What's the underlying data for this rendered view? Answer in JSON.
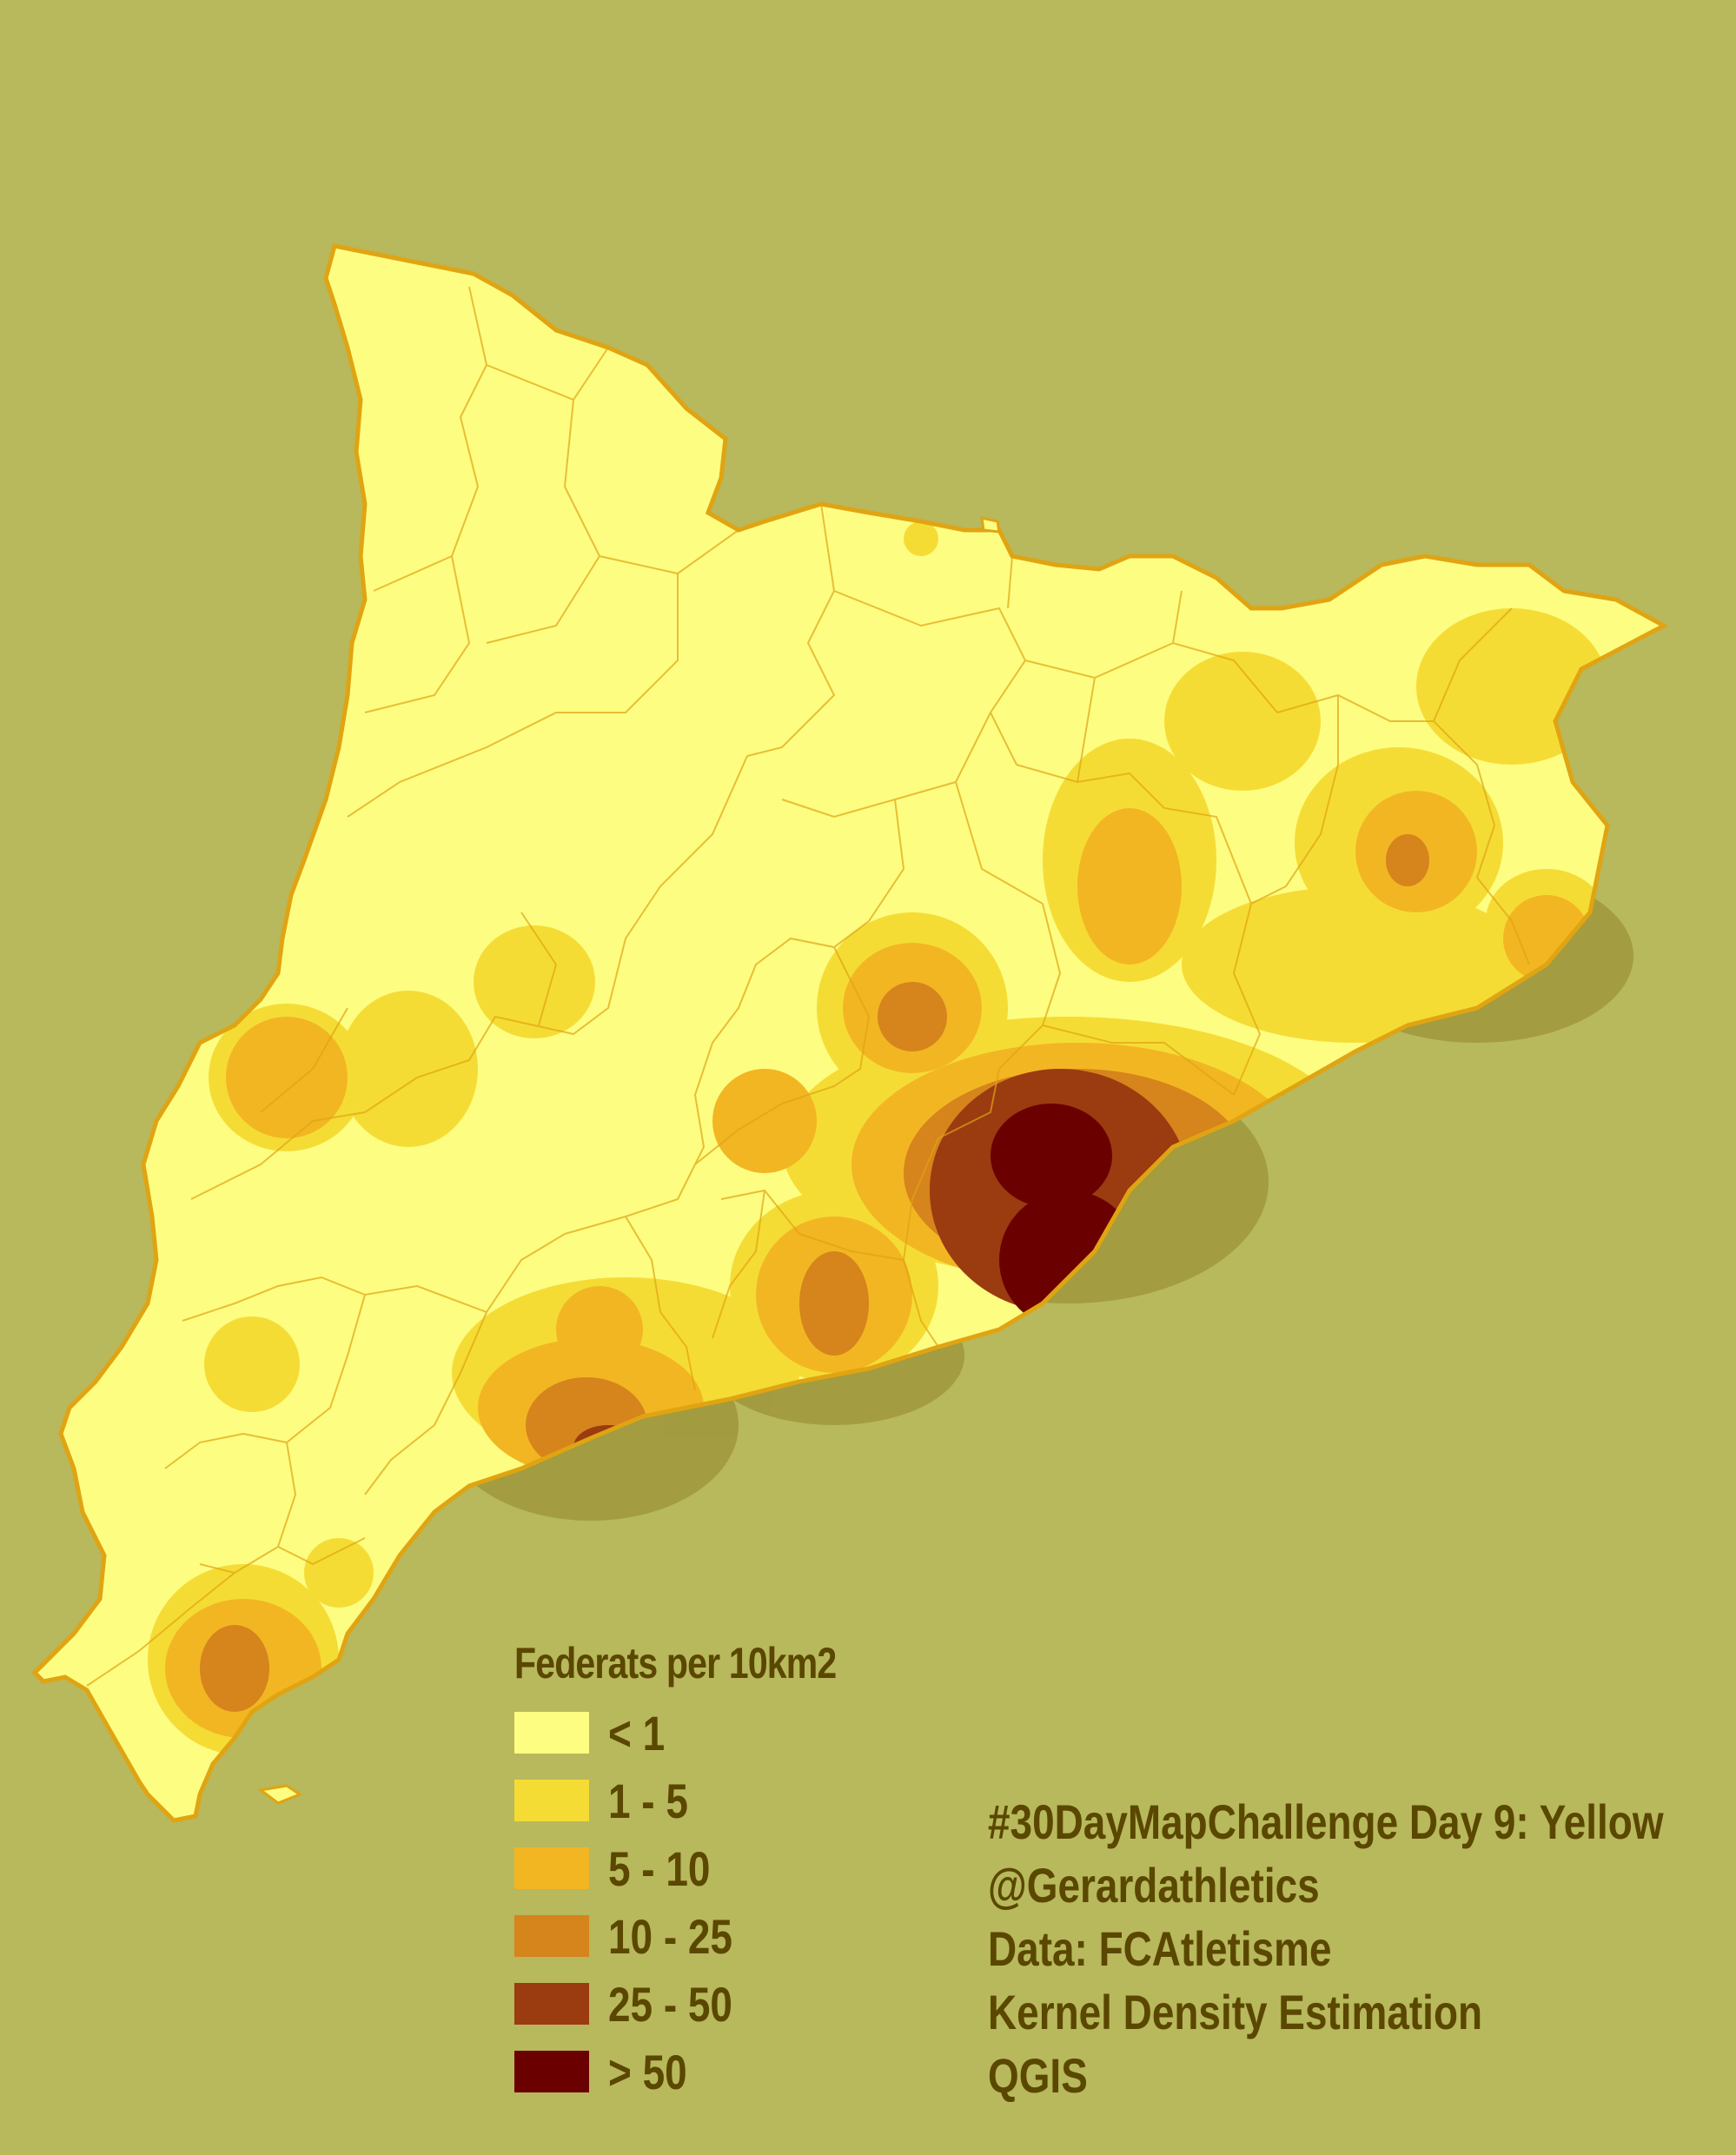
{
  "map": {
    "region_name": "",
    "background_color": "#b8b85c"
  },
  "legend": {
    "title": "Federats per 10km2",
    "items": [
      {
        "label": "< 1",
        "color": "#fdfd82"
      },
      {
        "label": "1 - 5",
        "color": "#f5dc35"
      },
      {
        "label": "5 - 10",
        "color": "#f2b623"
      },
      {
        "label": "10 - 25",
        "color": "#d6841c"
      },
      {
        "label": "25 - 50",
        "color": "#9a3b10"
      },
      {
        "label": "> 50",
        "color": "#6b0000"
      }
    ]
  },
  "credits": [
    "#30DayMapChallenge Day 9: Yellow",
    "@Gerardathletics",
    "Data: FCAtletisme",
    "Kernel Density Estimation",
    "QGIS"
  ]
}
